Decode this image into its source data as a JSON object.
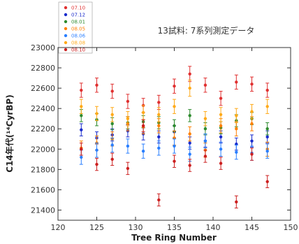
{
  "chart_data": {
    "type": "scatter",
    "title": "13試料: 7系列測定データ",
    "xlabel": "Tree Ring Number",
    "ylabel": "C14年代(¹⁴CyrBP)",
    "xlim": [
      120,
      150
    ],
    "ylim": [
      21300,
      23000
    ],
    "xticks": [
      120,
      125,
      130,
      135,
      140,
      145,
      150
    ],
    "yticks": [
      21400,
      21600,
      21800,
      22000,
      22200,
      22400,
      22600,
      22800,
      23000
    ],
    "grid": false,
    "legend_position": "top-left",
    "series": [
      {
        "name": "07.10",
        "color": "#e03030",
        "values": [
          [
            123,
            22580,
            70
          ],
          [
            125,
            22630,
            70
          ],
          [
            127,
            22570,
            70
          ],
          [
            129,
            22470,
            70
          ],
          [
            131,
            22430,
            70
          ],
          [
            133,
            22460,
            70
          ],
          [
            135,
            22620,
            70
          ],
          [
            137,
            22740,
            75
          ],
          [
            139,
            22630,
            70
          ],
          [
            141,
            22500,
            70
          ],
          [
            143,
            22660,
            70
          ],
          [
            145,
            22640,
            70
          ],
          [
            147,
            22580,
            70
          ]
        ]
      },
      {
        "name": "07.12",
        "color": "#1a2ccc",
        "values": [
          [
            123,
            22190,
            60
          ],
          [
            125,
            22110,
            60
          ],
          [
            127,
            22140,
            60
          ],
          [
            129,
            22180,
            60
          ],
          [
            131,
            22150,
            60
          ],
          [
            133,
            22120,
            60
          ],
          [
            135,
            22170,
            60
          ],
          [
            137,
            22060,
            60
          ],
          [
            139,
            22080,
            60
          ],
          [
            141,
            22120,
            60
          ],
          [
            143,
            22050,
            60
          ],
          [
            145,
            22080,
            60
          ],
          [
            147,
            22120,
            60
          ]
        ]
      },
      {
        "name": "08.01",
        "color": "#2e8b2e",
        "values": [
          [
            123,
            22330,
            60
          ],
          [
            125,
            22290,
            60
          ],
          [
            127,
            22250,
            60
          ],
          [
            129,
            22260,
            60
          ],
          [
            131,
            22270,
            60
          ],
          [
            133,
            22260,
            60
          ],
          [
            135,
            22230,
            60
          ],
          [
            137,
            22330,
            60
          ],
          [
            139,
            22200,
            60
          ],
          [
            141,
            22210,
            60
          ],
          [
            143,
            22280,
            60
          ],
          [
            145,
            22300,
            60
          ],
          [
            147,
            22200,
            60
          ]
        ]
      },
      {
        "name": "08.05",
        "color": "#ff7f00",
        "values": [
          [
            123,
            22010,
            70
          ],
          [
            125,
            22060,
            70
          ],
          [
            127,
            22100,
            70
          ],
          [
            129,
            22250,
            70
          ],
          [
            131,
            22220,
            70
          ],
          [
            133,
            22230,
            70
          ],
          [
            135,
            22110,
            70
          ],
          [
            137,
            22150,
            70
          ],
          [
            139,
            21990,
            70
          ],
          [
            141,
            22230,
            70
          ],
          [
            143,
            22200,
            70
          ],
          [
            145,
            22250,
            70
          ],
          [
            147,
            22000,
            70
          ]
        ]
      },
      {
        "name": "08.06",
        "color": "#2a7fff",
        "values": [
          [
            123,
            21920,
            70
          ],
          [
            125,
            21990,
            70
          ],
          [
            127,
            22040,
            70
          ],
          [
            129,
            22030,
            70
          ],
          [
            131,
            21980,
            70
          ],
          [
            133,
            22010,
            70
          ],
          [
            135,
            22030,
            70
          ],
          [
            137,
            21950,
            70
          ],
          [
            139,
            22080,
            70
          ],
          [
            141,
            22000,
            70
          ],
          [
            143,
            21970,
            70
          ],
          [
            145,
            21960,
            70
          ],
          [
            147,
            21980,
            70
          ]
        ]
      },
      {
        "name": "08.08",
        "color": "#ffaa1a",
        "values": [
          [
            123,
            22420,
            70
          ],
          [
            125,
            22350,
            70
          ],
          [
            127,
            22340,
            70
          ],
          [
            129,
            22300,
            70
          ],
          [
            131,
            22360,
            70
          ],
          [
            133,
            22340,
            70
          ],
          [
            135,
            22420,
            70
          ],
          [
            137,
            22600,
            80
          ],
          [
            139,
            22300,
            70
          ],
          [
            141,
            22340,
            70
          ],
          [
            143,
            22330,
            70
          ],
          [
            145,
            22370,
            70
          ],
          [
            147,
            22420,
            70
          ]
        ]
      },
      {
        "name": "08.10",
        "color": "#cc2020",
        "values": [
          [
            123,
            22000,
            60
          ],
          [
            125,
            21850,
            60
          ],
          [
            127,
            21900,
            60
          ],
          [
            129,
            21810,
            60
          ],
          [
            131,
            22230,
            60
          ],
          [
            133,
            21500,
            60
          ],
          [
            135,
            21880,
            60
          ],
          [
            137,
            21840,
            60
          ],
          [
            139,
            21930,
            60
          ],
          [
            141,
            21860,
            60
          ],
          [
            143,
            21480,
            60
          ],
          [
            145,
            21950,
            60
          ],
          [
            147,
            21680,
            60
          ]
        ]
      }
    ]
  }
}
